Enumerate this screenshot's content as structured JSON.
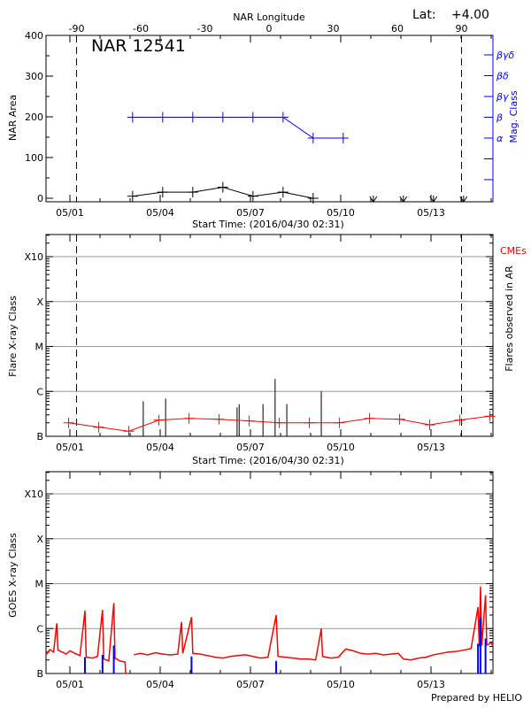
{
  "chart_data": [
    {
      "type": "line",
      "panel": "top",
      "title": "NAR 12541",
      "latitude_label": "Lat:",
      "latitude_value": "+4.00",
      "top_axis_label": "NAR Longitude",
      "top_axis_ticks": [
        -90,
        -60,
        -30,
        0,
        30,
        60,
        90
      ],
      "xlabel": "Start Time: (2016/04/30 02:31)",
      "x_tick_labels": [
        "05/01",
        "05/04",
        "05/07",
        "05/10",
        "05/13"
      ],
      "ylabel": "NAR Area",
      "ylim": [
        0,
        400
      ],
      "y_ticks": [
        0,
        100,
        200,
        300,
        400
      ],
      "y2label": "Mag. Class",
      "y2_classes": [
        "α",
        "β",
        "βγ",
        "βδ",
        "βγδ"
      ],
      "limb_lines_longitude": [
        -90,
        90
      ],
      "colors": {
        "area": "#000000",
        "mag_class": "#0000ff"
      },
      "series": [
        {
          "key": "area",
          "points": [
            [
              "2016-05-03 02:00",
              5
            ],
            [
              "2016-05-04 02:00",
              15
            ],
            [
              "2016-05-05 02:00",
              15
            ],
            [
              "2016-05-06 02:00",
              27
            ],
            [
              "2016-05-07 02:00",
              5
            ],
            [
              "2016-05-08 02:00",
              15
            ],
            [
              "2016-05-09 02:00",
              0
            ]
          ]
        },
        {
          "key": "mag_class",
          "points": [
            [
              "2016-05-03 02:00",
              "β"
            ],
            [
              "2016-05-04 02:00",
              "β"
            ],
            [
              "2016-05-05 02:00",
              "β"
            ],
            [
              "2016-05-06 02:00",
              "β"
            ],
            [
              "2016-05-07 02:00",
              "β"
            ],
            [
              "2016-05-08 02:00",
              "β"
            ],
            [
              "2016-05-09 02:00",
              "α"
            ],
            [
              "2016-05-10 02:00",
              "α"
            ]
          ]
        },
        {
          "key": "behind_limb_markers",
          "points": [
            "2016-05-11 02:00",
            "2016-05-12 02:00",
            "2016-05-13 02:00",
            "2016-05-14 02:00"
          ]
        }
      ]
    },
    {
      "type": "line",
      "panel": "middle",
      "xlabel": "Start Time: (2016/04/30 02:31)",
      "x_tick_labels": [
        "05/01",
        "05/04",
        "05/07",
        "05/10",
        "05/13"
      ],
      "ylabel": "Flare X-ray Class",
      "y_scale": "log",
      "y_tick_labels": [
        "B",
        "C",
        "M",
        "X",
        "X10"
      ],
      "ylim_flux": [
        1e-07,
        0.001
      ],
      "y2label": "Flares observed in AR",
      "cme_label": "CMEs",
      "grid": true,
      "colors": {
        "background_flux": "#ff0000",
        "flares": "#000000",
        "cme": "#ff0000"
      },
      "series": [
        {
          "key": "background_flux",
          "points": [
            [
              "2016-04-30 23:00",
              2e-07
            ],
            [
              "2016-05-01 23:00",
              1.6e-07
            ],
            [
              "2016-05-02 23:00",
              1.3e-07
            ],
            [
              "2016-05-03 23:00",
              2.3e-07
            ],
            [
              "2016-05-04 23:00",
              2.5e-07
            ],
            [
              "2016-05-05 23:00",
              2.4e-07
            ],
            [
              "2016-05-06 23:00",
              2.2e-07
            ],
            [
              "2016-05-07 23:00",
              2e-07
            ],
            [
              "2016-05-08 23:00",
              2e-07
            ],
            [
              "2016-05-09 23:00",
              2e-07
            ],
            [
              "2016-05-10 23:00",
              2.5e-07
            ],
            [
              "2016-05-11 23:00",
              2.4e-07
            ],
            [
              "2016-05-12 23:00",
              1.8e-07
            ],
            [
              "2016-05-13 23:00",
              2.3e-07
            ],
            [
              "2016-05-14 23:00",
              2.8e-07
            ]
          ]
        },
        {
          "key": "flares",
          "points": [
            [
              "2016-05-03 10:30",
              6e-07
            ],
            [
              "2016-05-04 04:20",
              6.9e-07
            ],
            [
              "2016-05-06 13:20",
              4.4e-07
            ],
            [
              "2016-05-06 15:00",
              5.2e-07
            ],
            [
              "2016-05-07 10:00",
              5.2e-07
            ],
            [
              "2016-05-07 19:40",
              1.9e-06
            ],
            [
              "2016-05-08 05:00",
              5.2e-07
            ],
            [
              "2016-05-09 08:30",
              1e-06
            ]
          ]
        }
      ],
      "limb_lines_longitude": [
        -90,
        90
      ]
    },
    {
      "type": "line",
      "panel": "bottom",
      "ylabel": "GOES X-ray Class",
      "y_scale": "log",
      "y_tick_labels": [
        "B",
        "C",
        "M",
        "X",
        "X10"
      ],
      "ylim_flux": [
        1e-07,
        0.001
      ],
      "x_tick_labels": [
        "05/01",
        "05/04",
        "05/07",
        "05/10",
        "05/13"
      ],
      "grid": true,
      "colors": {
        "goes_flux": "#ff0000",
        "flare_markers": "#0000ff"
      },
      "series": [
        {
          "key": "goes_flux",
          "points": [
            [
              "2016-04-30 05:00",
              2.6e-07
            ],
            [
              "2016-04-30 08:00",
              3.4e-07
            ],
            [
              "2016-04-30 11:00",
              3e-07
            ],
            [
              "2016-04-30 13:30",
              1.3e-06
            ],
            [
              "2016-04-30 14:30",
              3.3e-07
            ],
            [
              "2016-04-30 18:00",
              3e-07
            ],
            [
              "2016-04-30 21:00",
              2.7e-07
            ],
            [
              "2016-05-01 00:00",
              3.2e-07
            ],
            [
              "2016-05-01 04:00",
              2.8e-07
            ],
            [
              "2016-05-01 08:00",
              2.5e-07
            ],
            [
              "2016-05-01 12:00",
              2.5e-06
            ],
            [
              "2016-05-01 13:00",
              2.3e-07
            ],
            [
              "2016-05-01 18:00",
              2.2e-07
            ],
            [
              "2016-05-01 22:00",
              2.4e-07
            ],
            [
              "2016-05-02 02:00",
              2.6e-06
            ],
            [
              "2016-05-02 03:00",
              2.1e-07
            ],
            [
              "2016-05-02 07:00",
              1.9e-07
            ],
            [
              "2016-05-02 11:00",
              3.7e-06
            ],
            [
              "2016-05-02 12:00",
              2.2e-07
            ],
            [
              "2016-05-02 16:00",
              1.9e-07
            ],
            [
              "2016-05-02 20:00",
              1.8e-07
            ],
            [
              "2016-05-02 20:30",
              1e-07
            ],
            [
              "2016-05-02 21:00",
              null
            ],
            [
              "2016-05-03 03:00",
              2.6e-07
            ],
            [
              "2016-05-03 08:00",
              2.8e-07
            ],
            [
              "2016-05-03 14:00",
              2.6e-07
            ],
            [
              "2016-05-03 20:00",
              2.9e-07
            ],
            [
              "2016-05-04 02:00",
              2.7e-07
            ],
            [
              "2016-05-04 08:00",
              2.6e-07
            ],
            [
              "2016-05-04 14:00",
              2.7e-07
            ],
            [
              "2016-05-04 17:00",
              1.4e-06
            ],
            [
              "2016-05-04 18:00",
              2.8e-07
            ],
            [
              "2016-05-05 01:00",
              1.8e-06
            ],
            [
              "2016-05-05 02:00",
              2.8e-07
            ],
            [
              "2016-05-05 08:00",
              2.7e-07
            ],
            [
              "2016-05-05 14:00",
              2.5e-07
            ],
            [
              "2016-05-05 20:00",
              2.3e-07
            ],
            [
              "2016-05-06 02:00",
              2.2e-07
            ],
            [
              "2016-05-06 08:00",
              2.4e-07
            ],
            [
              "2016-05-06 14:00",
              2.5e-07
            ],
            [
              "2016-05-06 20:00",
              2.6e-07
            ],
            [
              "2016-05-07 02:00",
              2.4e-07
            ],
            [
              "2016-05-07 08:00",
              2.2e-07
            ],
            [
              "2016-05-07 14:00",
              2.3e-07
            ],
            [
              "2016-05-07 20:30",
              2e-06
            ],
            [
              "2016-05-07 22:00",
              2.4e-07
            ],
            [
              "2016-05-08 04:00",
              2.3e-07
            ],
            [
              "2016-05-08 10:00",
              2.2e-07
            ],
            [
              "2016-05-08 16:00",
              2.1e-07
            ],
            [
              "2016-05-08 22:00",
              2.1e-07
            ],
            [
              "2016-05-09 04:00",
              2e-07
            ],
            [
              "2016-05-09 08:30",
              1e-06
            ],
            [
              "2016-05-09 09:30",
              2.4e-07
            ],
            [
              "2016-05-09 16:00",
              2.2e-07
            ],
            [
              "2016-05-09 22:00",
              2.3e-07
            ],
            [
              "2016-05-10 04:00",
              3.5e-07
            ],
            [
              "2016-05-10 10:00",
              3.2e-07
            ],
            [
              "2016-05-10 16:00",
              2.8e-07
            ],
            [
              "2016-05-10 22:00",
              2.7e-07
            ],
            [
              "2016-05-11 04:00",
              2.8e-07
            ],
            [
              "2016-05-11 10:00",
              2.6e-07
            ],
            [
              "2016-05-11 16:00",
              2.7e-07
            ],
            [
              "2016-05-11 22:00",
              2.8e-07
            ],
            [
              "2016-05-12 02:00",
              2.1e-07
            ],
            [
              "2016-05-12 08:00",
              2e-07
            ],
            [
              "2016-05-12 14:00",
              2.2e-07
            ],
            [
              "2016-05-12 20:00",
              2.3e-07
            ],
            [
              "2016-05-13 02:00",
              2.6e-07
            ],
            [
              "2016-05-13 08:00",
              2.8e-07
            ],
            [
              "2016-05-13 14:00",
              3e-07
            ],
            [
              "2016-05-13 20:00",
              3.1e-07
            ],
            [
              "2016-05-14 02:00",
              3.3e-07
            ],
            [
              "2016-05-14 08:00",
              3.6e-07
            ],
            [
              "2016-05-14 13:30",
              3e-06
            ],
            [
              "2016-05-14 14:30",
              4e-07
            ],
            [
              "2016-05-14 15:30",
              8.6e-06
            ],
            [
              "2016-05-14 16:30",
              4.2e-07
            ],
            [
              "2016-05-14 19:30",
              5.5e-06
            ],
            [
              "2016-05-14 20:30",
              4.3e-07
            ],
            [
              "2016-05-15 00:00",
              4.8e-07
            ],
            [
              "2016-05-15 01:30",
              4.1e-07
            ]
          ]
        },
        {
          "key": "flare_markers",
          "points": [
            [
              "2016-05-01 12:00",
              2.3e-07
            ],
            [
              "2016-05-02 02:00",
              2.6e-07
            ],
            [
              "2016-05-02 11:00",
              4.2e-07
            ],
            [
              "2016-05-05 01:00",
              2.4e-07
            ],
            [
              "2016-05-07 20:30",
              1.9e-07
            ],
            [
              "2016-05-14 13:30",
              4.6e-07
            ],
            [
              "2016-05-14 15:30",
              1.8e-06
            ],
            [
              "2016-05-14 19:30",
              6e-07
            ]
          ]
        }
      ],
      "footer": "Prepared by HELIO"
    }
  ]
}
